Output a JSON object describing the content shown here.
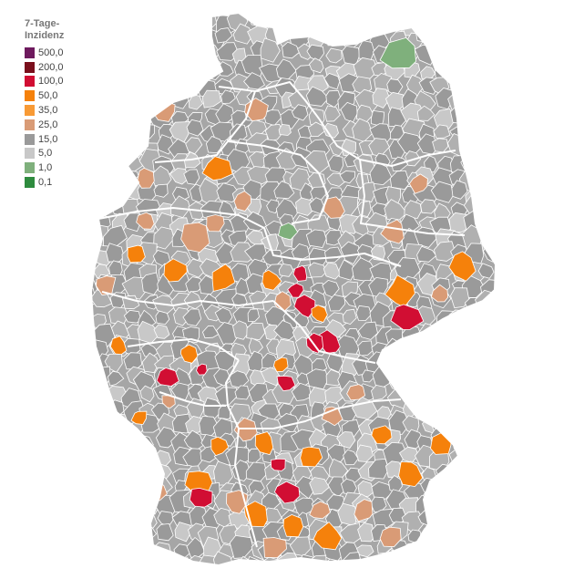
{
  "legend": {
    "title": "7-Tage-\nInzidenz",
    "items": [
      {
        "label": "500,0",
        "color": "#6e1a5e"
      },
      {
        "label": "200,0",
        "color": "#7a0f1c"
      },
      {
        "label": "100,0",
        "color": "#d10e33"
      },
      {
        "label": "50,0",
        "color": "#f5810b"
      },
      {
        "label": "35,0",
        "color": "#f89a35"
      },
      {
        "label": "25,0",
        "color": "#d99b76"
      },
      {
        "label": "15,0",
        "color": "#9a9a9a"
      },
      {
        "label": "5,0",
        "color": "#c8c8c8"
      },
      {
        "label": "1,0",
        "color": "#7fb07c"
      },
      {
        "label": "0,1",
        "color": "#2e8b3e"
      }
    ]
  },
  "colors": {
    "very_high": "#d10e33",
    "high": "#f5810b",
    "medium": "#d99b76",
    "low": "#9a9a9a",
    "lower": "#b0b0b0",
    "very_low": "#c8c8c8",
    "minimal": "#7fb07c",
    "borders": "#ffffff"
  }
}
